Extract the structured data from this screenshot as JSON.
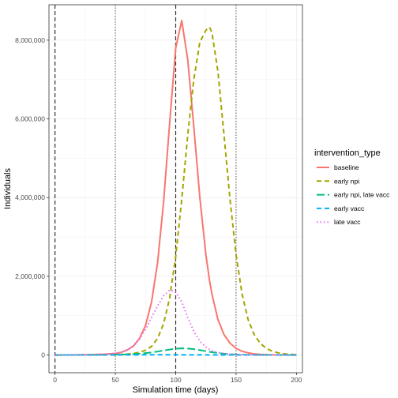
{
  "chart_data": {
    "type": "line",
    "title": "",
    "xlabel": "Simulation time (days)",
    "ylabel": "Individuals",
    "xlim": [
      -5,
      205
    ],
    "ylim": [
      -450000,
      8900000
    ],
    "xticks": [
      0,
      50,
      100,
      150,
      200
    ],
    "xtick_labels": [
      "0",
      "50",
      "100",
      "150",
      "200"
    ],
    "yticks": [
      0,
      2000000,
      4000000,
      6000000,
      8000000
    ],
    "ytick_labels": [
      "0",
      "2,000,000",
      "4,000,000",
      "6,000,000",
      "8,000,000"
    ],
    "grid": true,
    "legend_position": "right",
    "legend_title": "intervention_type",
    "vlines": [
      {
        "x": 0,
        "style": "dashed"
      },
      {
        "x": 100,
        "style": "dashed"
      },
      {
        "x": 50,
        "style": "dotted"
      },
      {
        "x": 150,
        "style": "dotted"
      }
    ],
    "x": [
      0,
      10,
      20,
      30,
      40,
      50,
      55,
      60,
      65,
      70,
      75,
      80,
      85,
      90,
      95,
      100,
      105,
      110,
      115,
      120,
      125,
      128,
      130,
      135,
      140,
      145,
      150,
      155,
      160,
      165,
      170,
      175,
      180,
      185,
      190,
      195,
      200
    ],
    "series": [
      {
        "name": "baseline",
        "color": "#F8766D",
        "dash": "solid",
        "values": [
          0,
          2000,
          5000,
          10000,
          20000,
          40000,
          70000,
          130000,
          230000,
          420000,
          750000,
          1350000,
          2350000,
          3900000,
          5900000,
          7800000,
          8500000,
          7500000,
          5800000,
          4000000,
          2550000,
          1900000,
          1550000,
          900000,
          520000,
          300000,
          170000,
          95000,
          55000,
          30000,
          16000,
          9000,
          5000,
          3000,
          1500,
          800,
          400
        ]
      },
      {
        "name": "early npi",
        "color": "#A3A500",
        "dash": "dashed",
        "values": [
          0,
          1000,
          2000,
          4000,
          7000,
          12000,
          17000,
          25000,
          40000,
          70000,
          120000,
          220000,
          420000,
          800000,
          1450000,
          2500000,
          3950000,
          5600000,
          7000000,
          7950000,
          8250000,
          8330000,
          8200000,
          7200000,
          5600000,
          3950000,
          2550000,
          1550000,
          900000,
          520000,
          300000,
          170000,
          95000,
          55000,
          30000,
          17000,
          10000
        ]
      },
      {
        "name": "early npi, late vacc",
        "color": "#00BF7D",
        "dash": "longdash",
        "values": [
          0,
          1000,
          2000,
          3000,
          5000,
          9000,
          12000,
          17000,
          24000,
          34000,
          48000,
          65000,
          88000,
          115000,
          140000,
          160000,
          170000,
          165000,
          150000,
          125000,
          98000,
          82000,
          72000,
          50000,
          33000,
          21000,
          13000,
          8000,
          5000,
          3000,
          2000,
          1200,
          800,
          500,
          300,
          200,
          100
        ]
      },
      {
        "name": "early vacc",
        "color": "#00B0F6",
        "dash": "dashed",
        "values": [
          0,
          500,
          1000,
          1500,
          2000,
          3000,
          3500,
          4000,
          4500,
          5000,
          5500,
          5800,
          6000,
          6000,
          5800,
          5500,
          5000,
          4500,
          4000,
          3500,
          3000,
          2700,
          2500,
          2000,
          1600,
          1300,
          1000,
          800,
          600,
          500,
          400,
          300,
          250,
          200,
          150,
          100,
          80
        ]
      },
      {
        "name": "late vacc",
        "color": "#E76BF3",
        "dash": "dotted",
        "values": [
          0,
          2000,
          5000,
          10000,
          20000,
          40000,
          70000,
          130000,
          230000,
          400000,
          650000,
          950000,
          1250000,
          1500000,
          1650000,
          1600000,
          1350000,
          950000,
          600000,
          350000,
          200000,
          140000,
          110000,
          65000,
          38000,
          22000,
          13000,
          7500,
          4300,
          2500,
          1400,
          800,
          450,
          250,
          150,
          80,
          50
        ]
      }
    ]
  }
}
